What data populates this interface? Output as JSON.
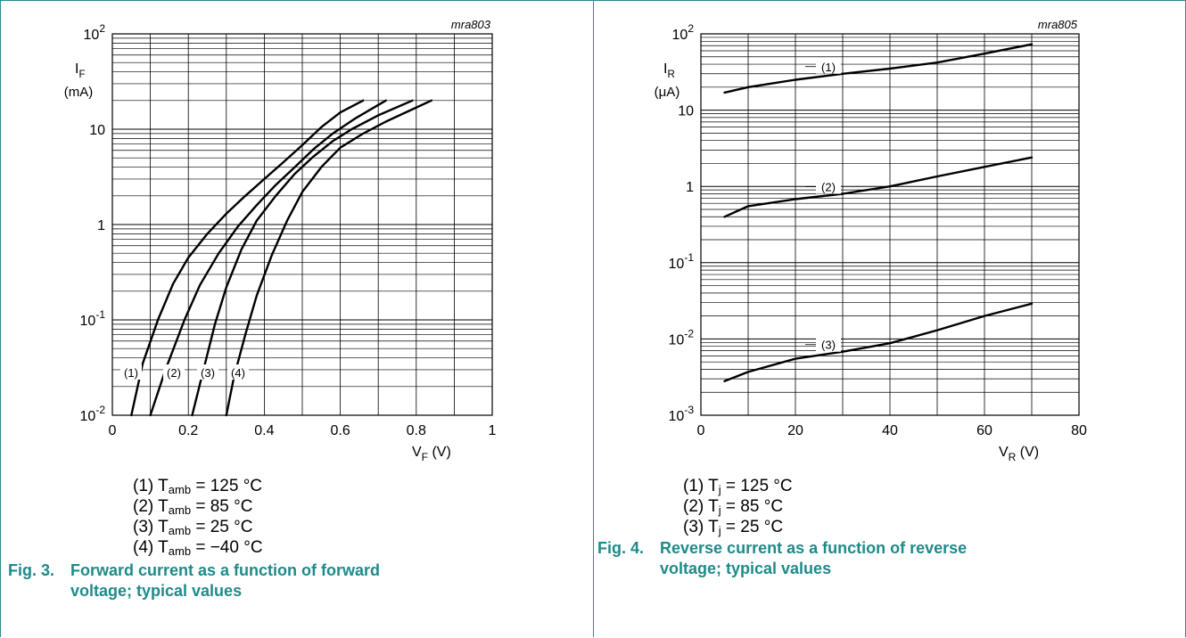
{
  "chart_data": [
    {
      "type": "line",
      "code": "mra803",
      "ylabel": "I_F",
      "yunit": "(mA)",
      "xlabel": "V_F (V)",
      "yscale": "log",
      "xlim": [
        0,
        1
      ],
      "ylim": [
        0.01,
        100
      ],
      "xticks": [
        "0",
        "0.2",
        "0.4",
        "0.6",
        "0.8",
        "1"
      ],
      "yticks": [
        {
          "base": "10",
          "exp": "2",
          "value": 100
        },
        {
          "base": "10",
          "exp": "",
          "value": 10
        },
        {
          "base": "1",
          "exp": "",
          "value": 1
        },
        {
          "base": "10",
          "exp": "-1",
          "value": 0.1
        },
        {
          "base": "10",
          "exp": "-2",
          "value": 0.01
        }
      ],
      "series": [
        {
          "name": "(1)",
          "x": [
            0.05,
            0.08,
            0.12,
            0.16,
            0.2,
            0.25,
            0.3,
            0.35,
            0.4,
            0.45,
            0.5,
            0.55,
            0.6,
            0.66
          ],
          "y": [
            0.01,
            0.035,
            0.1,
            0.24,
            0.45,
            0.8,
            1.3,
            2.0,
            3.0,
            4.5,
            6.8,
            10.5,
            15,
            20
          ]
        },
        {
          "name": "(2)",
          "x": [
            0.1,
            0.14,
            0.19,
            0.23,
            0.28,
            0.33,
            0.38,
            0.43,
            0.48,
            0.53,
            0.58,
            0.64,
            0.72
          ],
          "y": [
            0.01,
            0.03,
            0.1,
            0.23,
            0.5,
            0.95,
            1.6,
            2.6,
            4.0,
            6.2,
            9.0,
            13,
            20
          ]
        },
        {
          "name": "(3)",
          "x": [
            0.21,
            0.24,
            0.27,
            0.3,
            0.34,
            0.38,
            0.43,
            0.48,
            0.53,
            0.58,
            0.63,
            0.7,
            0.79
          ],
          "y": [
            0.01,
            0.03,
            0.09,
            0.22,
            0.55,
            1.1,
            2.0,
            3.4,
            5.2,
            7.5,
            10,
            14,
            20
          ]
        },
        {
          "name": "(4)",
          "x": [
            0.3,
            0.32,
            0.35,
            0.38,
            0.42,
            0.46,
            0.5,
            0.55,
            0.6,
            0.66,
            0.72,
            0.78,
            0.84
          ],
          "y": [
            0.01,
            0.025,
            0.07,
            0.18,
            0.48,
            1.1,
            2.2,
            4.0,
            6.4,
            9.0,
            12,
            15.5,
            20
          ]
        }
      ],
      "legend": [
        {
          "label": "(1) T",
          "sub": "amb",
          "rest": " = 125 °C"
        },
        {
          "label": "(2) T",
          "sub": "amb",
          "rest": " = 85 °C"
        },
        {
          "label": "(3) T",
          "sub": "amb",
          "rest": " = 25 °C"
        },
        {
          "label": "(4) T",
          "sub": "amb",
          "rest": " = −40 °C"
        }
      ],
      "caption_number": "Fig. 3.",
      "caption_title_1": "Forward current as a function of forward",
      "caption_title_2": "voltage; typical values"
    },
    {
      "type": "line",
      "code": "mra805",
      "ylabel": "I_R",
      "yunit": "(μA)",
      "xlabel": "V_R (V)",
      "yscale": "log",
      "xlim": [
        0,
        80
      ],
      "ylim": [
        0.001,
        100
      ],
      "xticks": [
        "0",
        "20",
        "40",
        "60",
        "80"
      ],
      "yticks": [
        {
          "base": "10",
          "exp": "2",
          "value": 100
        },
        {
          "base": "10",
          "exp": "",
          "value": 10
        },
        {
          "base": "1",
          "exp": "",
          "value": 1
        },
        {
          "base": "10",
          "exp": "-1",
          "value": 0.1
        },
        {
          "base": "10",
          "exp": "-2",
          "value": 0.01
        },
        {
          "base": "10",
          "exp": "-3",
          "value": 0.001
        }
      ],
      "series": [
        {
          "name": "(1)",
          "x": [
            5,
            10,
            20,
            30,
            40,
            50,
            60,
            70
          ],
          "y": [
            17,
            20,
            25,
            30,
            35,
            42,
            55,
            73
          ]
        },
        {
          "name": "(2)",
          "x": [
            5,
            10,
            20,
            30,
            40,
            50,
            60,
            70
          ],
          "y": [
            0.4,
            0.55,
            0.68,
            0.8,
            1.0,
            1.35,
            1.8,
            2.4
          ]
        },
        {
          "name": "(3)",
          "x": [
            5,
            10,
            20,
            30,
            40,
            50,
            60,
            70
          ],
          "y": [
            0.0028,
            0.0037,
            0.0055,
            0.0068,
            0.0088,
            0.013,
            0.02,
            0.029
          ]
        }
      ],
      "legend": [
        {
          "label": "(1) T",
          "sub": "j",
          "rest": " = 125 °C"
        },
        {
          "label": "(2) T",
          "sub": "j",
          "rest": " = 85 °C"
        },
        {
          "label": "(3) T",
          "sub": "j",
          "rest": " = 25 °C"
        }
      ],
      "caption_number": "Fig. 4.",
      "caption_title_1": "Reverse current as a function of reverse",
      "caption_title_2": "voltage; typical values"
    }
  ]
}
